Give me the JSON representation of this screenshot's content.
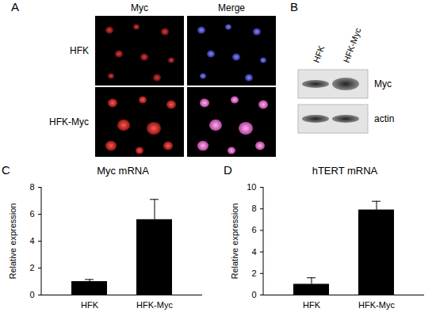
{
  "figure_panels": {
    "A": {
      "label": "A",
      "columns": [
        "Myc",
        "Merge"
      ],
      "rows": [
        "HFK",
        "HFK-Myc"
      ]
    },
    "B": {
      "label": "B",
      "lanes": [
        "HFK",
        "HFK-Myc"
      ],
      "bands": [
        "Myc",
        "actin"
      ]
    }
  },
  "chart_data": [
    {
      "type": "bar",
      "panel_label": "C",
      "title": "Myc mRNA",
      "ylabel": "Relative expression",
      "categories": [
        "HFK",
        "HFK-Myc"
      ],
      "values": [
        1,
        5.6
      ],
      "errors": [
        0.15,
        1.5
      ],
      "color": "#000000",
      "ylim": [
        0,
        8
      ],
      "yticks": [
        0,
        2,
        4,
        6,
        8
      ],
      "grid": false
    },
    {
      "type": "bar",
      "panel_label": "D",
      "title": "hTERT mRNA",
      "ylabel": "Relative expression",
      "categories": [
        "HFK",
        "HFK-Myc"
      ],
      "values": [
        1,
        7.9
      ],
      "errors": [
        0.6,
        0.8
      ],
      "color": "#000000",
      "ylim": [
        0,
        10
      ],
      "yticks": [
        0,
        2,
        4,
        6,
        8,
        10
      ],
      "grid": false
    }
  ]
}
